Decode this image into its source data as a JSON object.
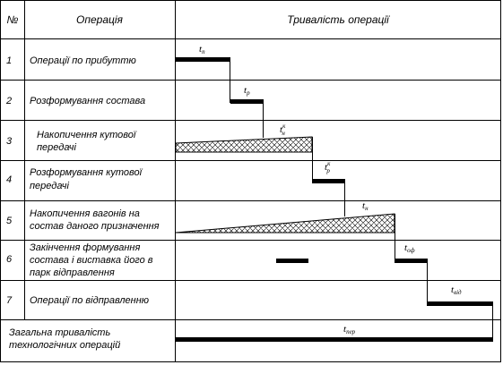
{
  "header": {
    "num": "№",
    "operation": "Операція",
    "duration": "Тривалість операції"
  },
  "rows": [
    {
      "num": "1",
      "lines": [
        "Операції по прибуттю"
      ],
      "align": "left"
    },
    {
      "num": "2",
      "lines": [
        "Розформування состава"
      ],
      "align": "left"
    },
    {
      "num": "3",
      "lines": [
        "Накопичення кутової",
        "передачі"
      ],
      "align": "indent"
    },
    {
      "num": "4",
      "lines": [
        "Розформування кутової",
        "передачі"
      ],
      "align": "left"
    },
    {
      "num": "5",
      "lines": [
        "Накопичення    вагонів    на",
        "состав даного призначення"
      ],
      "align": "left"
    },
    {
      "num": "6",
      "lines": [
        "Закінчення       формування",
        "состава і виставка його в",
        "парк відправлення"
      ],
      "align": "left"
    },
    {
      "num": "7",
      "lines": [
        "Операції по відправленню"
      ],
      "align": "left"
    }
  ],
  "total": {
    "lines": [
      "Загальна тривалість",
      "технологічних операцій"
    ]
  },
  "symbols": [
    {
      "base": "t",
      "sub": "п",
      "sup": ""
    },
    {
      "base": "t",
      "sub": "р",
      "sup": ""
    },
    {
      "base": "t",
      "sub": "н",
      "sup": "к"
    },
    {
      "base": "t",
      "sub": "р",
      "sup": "к"
    },
    {
      "base": "t",
      "sub": "н",
      "sup": ""
    },
    {
      "base": "t",
      "sub": "оф",
      "sup": ""
    },
    {
      "base": "t",
      "sub": "від",
      "sup": ""
    },
    {
      "base": "t",
      "sub": "пер",
      "sup": ""
    }
  ]
}
